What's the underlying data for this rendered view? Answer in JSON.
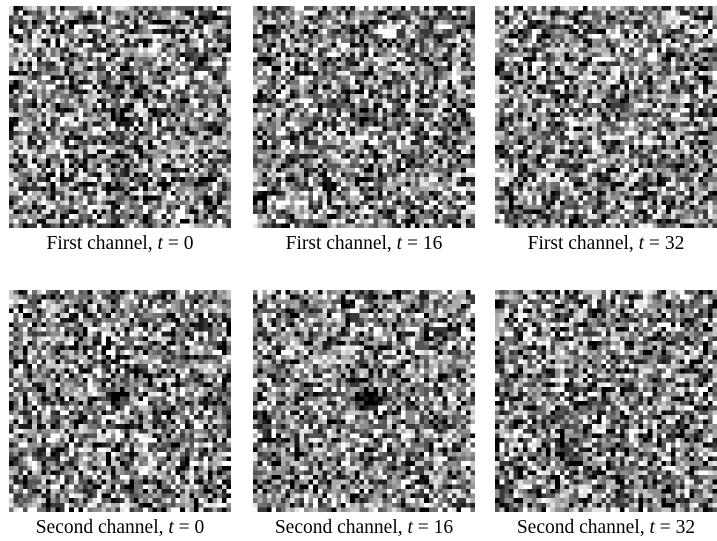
{
  "figure": {
    "panels": [
      {
        "caption": {
          "text": "First channel,",
          "variable": "t",
          "relation": "=",
          "value": 0
        }
      },
      {
        "caption": {
          "text": "First channel,",
          "variable": "t",
          "relation": "=",
          "value": 16
        }
      },
      {
        "caption": {
          "text": "First channel,",
          "variable": "t",
          "relation": "=",
          "value": 32
        }
      },
      {
        "caption": {
          "text": "Second channel,",
          "variable": "t",
          "relation": "=",
          "value": 0
        }
      },
      {
        "caption": {
          "text": "Second channel,",
          "variable": "t",
          "relation": "=",
          "value": 16
        }
      },
      {
        "caption": {
          "text": "Second channel,",
          "variable": "t",
          "relation": "=",
          "value": 32
        }
      }
    ]
  }
}
